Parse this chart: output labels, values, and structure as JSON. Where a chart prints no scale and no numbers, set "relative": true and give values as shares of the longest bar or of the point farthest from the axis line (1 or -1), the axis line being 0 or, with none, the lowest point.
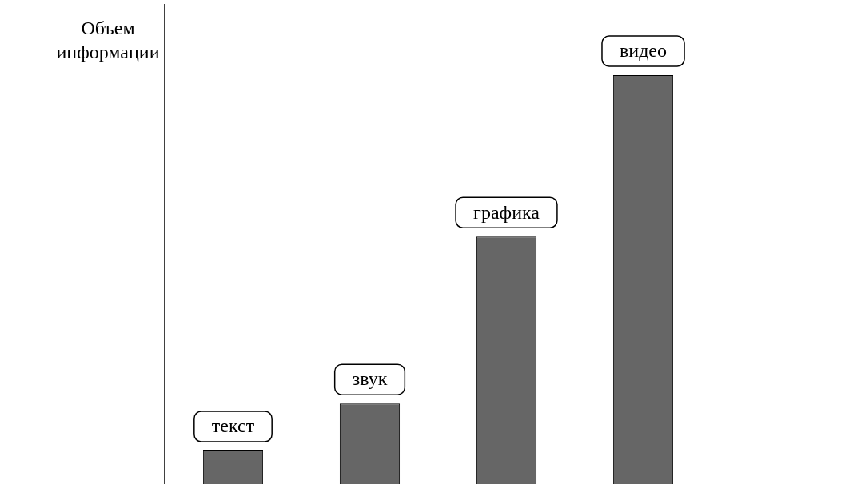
{
  "chart_data": {
    "type": "bar",
    "ylabel": "Объем информации",
    "categories": [
      "текст",
      "звук",
      "графика",
      "видео"
    ],
    "values": [
      0.082,
      0.197,
      0.605,
      1
    ],
    "color": "#666666",
    "relative": true
  }
}
